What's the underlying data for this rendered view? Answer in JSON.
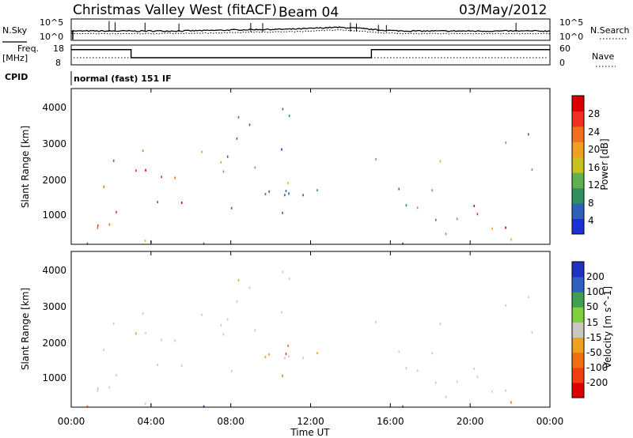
{
  "header": {
    "station": "Christmas Valley West (fitACF)",
    "beam": "Beam 04",
    "date": "03/May/2012"
  },
  "left_labels": {
    "nsky": "N.Sky",
    "freq_line1": "Freq.",
    "freq_line2": "[MHz]",
    "cpid": "CPID"
  },
  "right_labels": {
    "nsearch": "N.Search",
    "nave": "Nave"
  },
  "cpid_text": "normal (fast) 151 IF",
  "colors": {
    "power_colors": [
      "#1f2fd6",
      "#2f5fb8",
      "#2f8f5f",
      "#60b050",
      "#c8c020",
      "#f0a020",
      "#f07020",
      "#ef3020",
      "#d80000"
    ],
    "velocity_colors": [
      "#dd0000",
      "#f04010",
      "#f07010",
      "#f0a020",
      "#c8c8c0",
      "#80d040",
      "#40a050",
      "#3060c0",
      "#2030c0"
    ]
  },
  "chart_data": [
    {
      "type": "line",
      "panel": "noise",
      "ylabels": [
        "10^5",
        "10^0"
      ],
      "series_labels_left": "N.Sky",
      "series_labels_right": "N.Search",
      "right_ticks": [
        "10^5",
        "10^0"
      ]
    },
    {
      "type": "line",
      "panel": "frequency",
      "left_ticks": [
        "18",
        "8"
      ],
      "right_ticks": [
        "60",
        "0"
      ],
      "right_label": "Nave",
      "freq_steps": [
        {
          "t": 0,
          "mhz": 15.7
        },
        {
          "t": 3.0,
          "mhz": 11.6
        },
        {
          "t": 15.05,
          "mhz": 15.7
        },
        {
          "t": 24,
          "mhz": 15.7
        }
      ]
    },
    {
      "type": "heatmap",
      "panel": "power",
      "ylabel": "Slant Range [km]",
      "yticks": [
        "4000",
        "3000",
        "2000",
        "1000"
      ],
      "colorbar_label": "Power [dB]",
      "colorbar_ticks": [
        "28",
        "24",
        "20",
        "16",
        "12",
        "8",
        "4"
      ]
    },
    {
      "type": "heatmap",
      "panel": "velocity",
      "ylabel": "Slant Range [km]",
      "yticks": [
        "4000",
        "3000",
        "2000",
        "1000"
      ],
      "colorbar_label": "Velocity [m s^-1]",
      "colorbar_ticks": [
        "200",
        "100",
        "50",
        "15",
        "-15",
        "-50",
        "-100",
        "-200"
      ]
    }
  ],
  "xaxis": {
    "label": "Time UT",
    "ticks": [
      "00:00",
      "04:00",
      "08:00",
      "12:00",
      "16:00",
      "20:00",
      "00:00"
    ]
  }
}
